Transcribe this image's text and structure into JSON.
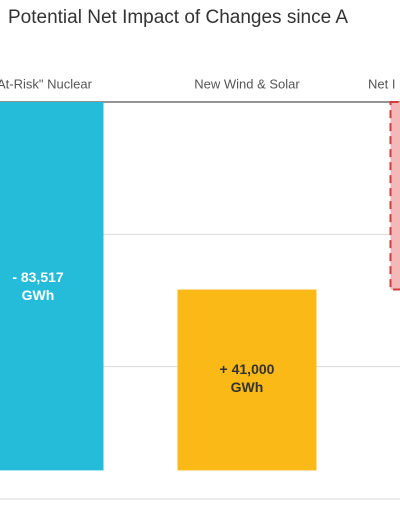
{
  "chart_data": {
    "type": "waterfall",
    "title": "Potential Net Impact of Changes since A",
    "categories": [
      "At-Risk\" Nuclear",
      "New Wind & Solar",
      "Net I"
    ],
    "values": [
      -83517,
      41000,
      -42517
    ],
    "value_labels": [
      "- 83,517 GWh",
      "+ 41,000 GWh",
      null
    ],
    "colors": [
      "#25bcd9",
      "#fbb917",
      "#f4b8b8"
    ],
    "ylim": [
      -90000,
      0
    ],
    "yticks": [
      0,
      -30000,
      -60000,
      -90000
    ],
    "grid": true
  }
}
